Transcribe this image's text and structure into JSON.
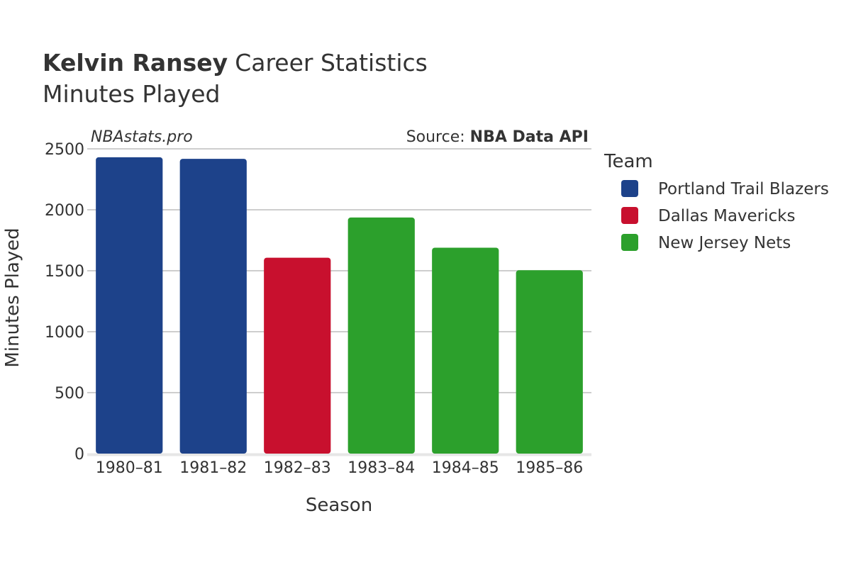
{
  "chart_data": {
    "type": "bar",
    "title_bold": "Kelvin Ransey",
    "title_rest": "Career Statistics",
    "subtitle": "Minutes Played",
    "watermark": "NBAstats.pro",
    "source_prefix": "Source: ",
    "source_name": "NBA Data API",
    "xlabel": "Season",
    "ylabel": "Minutes Played",
    "ylim": [
      0,
      2500
    ],
    "yticks": [
      0,
      500,
      1000,
      1500,
      2000,
      2500
    ],
    "grid": true,
    "legend": {
      "title": "Team",
      "placement": "right",
      "items": [
        {
          "name": "Portland Trail Blazers",
          "color": "#1D428A"
        },
        {
          "name": "Dallas Mavericks",
          "color": "#C8102E"
        },
        {
          "name": "New Jersey Nets",
          "color": "#2CA02C"
        }
      ]
    },
    "categories": [
      "1980–81",
      "1981–82",
      "1982–83",
      "1983–84",
      "1984–85",
      "1985–86"
    ],
    "values": [
      2431,
      2418,
      1607,
      1937,
      1689,
      1504
    ],
    "teams": [
      "Portland Trail Blazers",
      "Portland Trail Blazers",
      "Dallas Mavericks",
      "New Jersey Nets",
      "New Jersey Nets",
      "New Jersey Nets"
    ]
  }
}
